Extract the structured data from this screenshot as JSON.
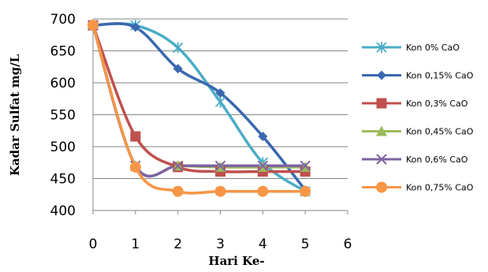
{
  "chart_data": {
    "type": "line",
    "title": "",
    "xlabel": "Hari Ke-",
    "ylabel": "Kadar Sulfat mg/L",
    "xlim": [
      0,
      6
    ],
    "ylim": [
      400,
      700
    ],
    "x_ticks": [
      "0",
      "1",
      "2",
      "3",
      "4",
      "5",
      "6"
    ],
    "y_ticks": [
      "400",
      "450",
      "500",
      "550",
      "600",
      "650",
      "700"
    ],
    "grid": "horizontal",
    "legend_position": "right",
    "x": [
      0,
      1,
      2,
      3,
      4,
      5
    ],
    "series": [
      {
        "name": "Kon 0% CaO",
        "color": "#4bacc6",
        "marker": "star",
        "values": [
          690,
          690,
          655,
          570,
          475,
          430
        ]
      },
      {
        "name": "Kon 0,15% CaO",
        "color": "#3a68b0",
        "marker": "diamond",
        "values": [
          690,
          687,
          622,
          584,
          516,
          432
        ]
      },
      {
        "name": "Kon 0,3% CaO",
        "color": "#c0504d",
        "marker": "square",
        "values": [
          690,
          516,
          468,
          461,
          461,
          461
        ]
      },
      {
        "name": "Kon 0,45% CaO",
        "color": "#9bbb59",
        "marker": "triangle",
        "values": [
          690,
          470,
          470,
          468,
          468,
          468
        ]
      },
      {
        "name": "Kon 0,6% CaO",
        "color": "#7e62a1",
        "marker": "x",
        "values": [
          690,
          470,
          470,
          470,
          470,
          470
        ]
      },
      {
        "name": "Kon 0,75% CaO",
        "color": "#f79646",
        "marker": "circle",
        "values": [
          690,
          468,
          430,
          430,
          430,
          430
        ]
      }
    ]
  }
}
